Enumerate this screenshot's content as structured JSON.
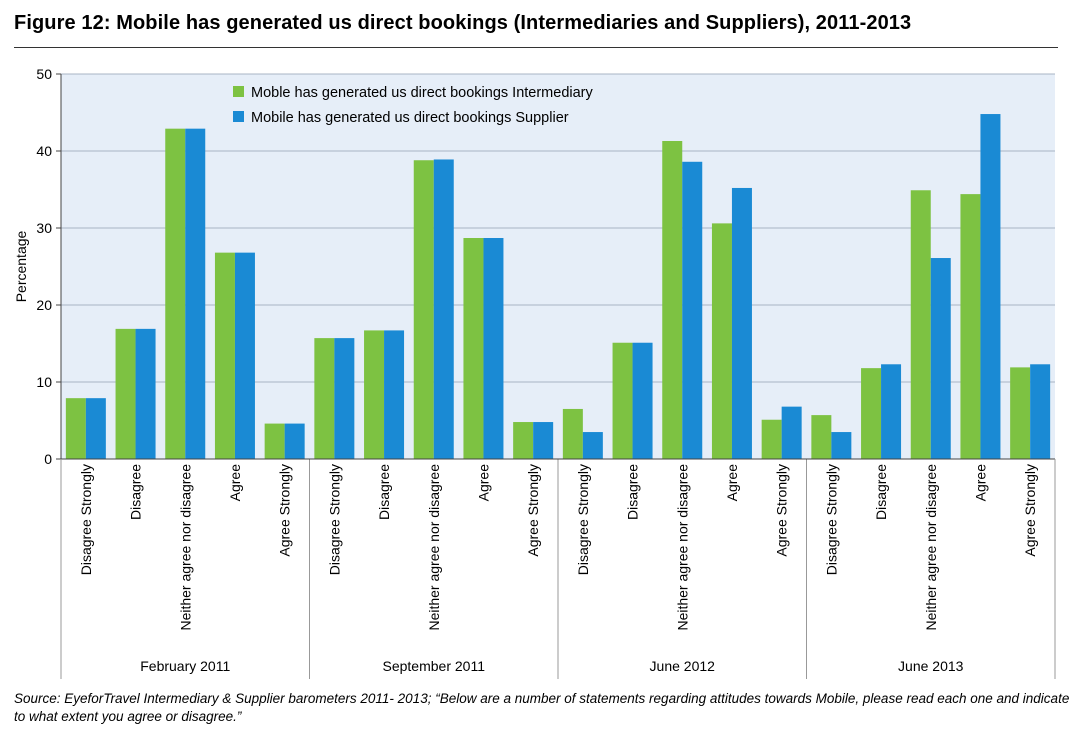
{
  "figure_title": "Figure 12: Mobile has generated us direct bookings (Intermediaries and Suppliers), 2011-2013",
  "source_note": "Source: EyeforTravel Intermediary & Supplier barometers 2011- 2013; “Below are a number of statements regarding attitudes towards Mobile, please read each one and indicate to what extent you agree or disagree.”",
  "colors": {
    "plot_background": "#e6eef8",
    "intermediary": "#7dc242",
    "supplier": "#1a8ad4",
    "gridline": "#a8b4c4",
    "axis": "#444444"
  },
  "chart_data": {
    "type": "bar",
    "title": "Figure 12: Mobile has generated us direct bookings (Intermediaries and Suppliers), 2011-2013",
    "xlabel": "",
    "ylabel": "Percentage",
    "ylim": [
      0,
      50
    ],
    "yticks": [
      0,
      10,
      20,
      30,
      40,
      50
    ],
    "grid": true,
    "legend_position": "top-left",
    "responses": [
      "Disagree Strongly",
      "Disagree",
      "Neither agree nor disagree",
      "Agree",
      "Agree Strongly"
    ],
    "groups": [
      "February 2011",
      "September 2011",
      "June 2012",
      "June 2013"
    ],
    "series": [
      {
        "name": "Mobile has generated us direct bookings Intermediary",
        "legend_label": "Moble has generated us direct bookings Intermediary",
        "values": [
          [
            7.9,
            16.9,
            42.9,
            26.8,
            4.6
          ],
          [
            15.7,
            16.7,
            38.8,
            28.7,
            4.8
          ],
          [
            6.5,
            15.1,
            41.3,
            30.6,
            5.1
          ],
          [
            5.7,
            11.8,
            34.9,
            34.4,
            11.9
          ]
        ]
      },
      {
        "name": "Mobile has generated us direct bookings Supplier",
        "legend_label": "Mobile has generated us direct bookings Supplier",
        "values": [
          [
            7.9,
            16.9,
            42.9,
            26.8,
            4.6
          ],
          [
            15.7,
            16.7,
            38.9,
            28.7,
            4.8
          ],
          [
            3.5,
            15.1,
            38.6,
            35.2,
            6.8
          ],
          [
            3.5,
            12.3,
            26.1,
            44.8,
            12.3
          ]
        ]
      }
    ]
  }
}
